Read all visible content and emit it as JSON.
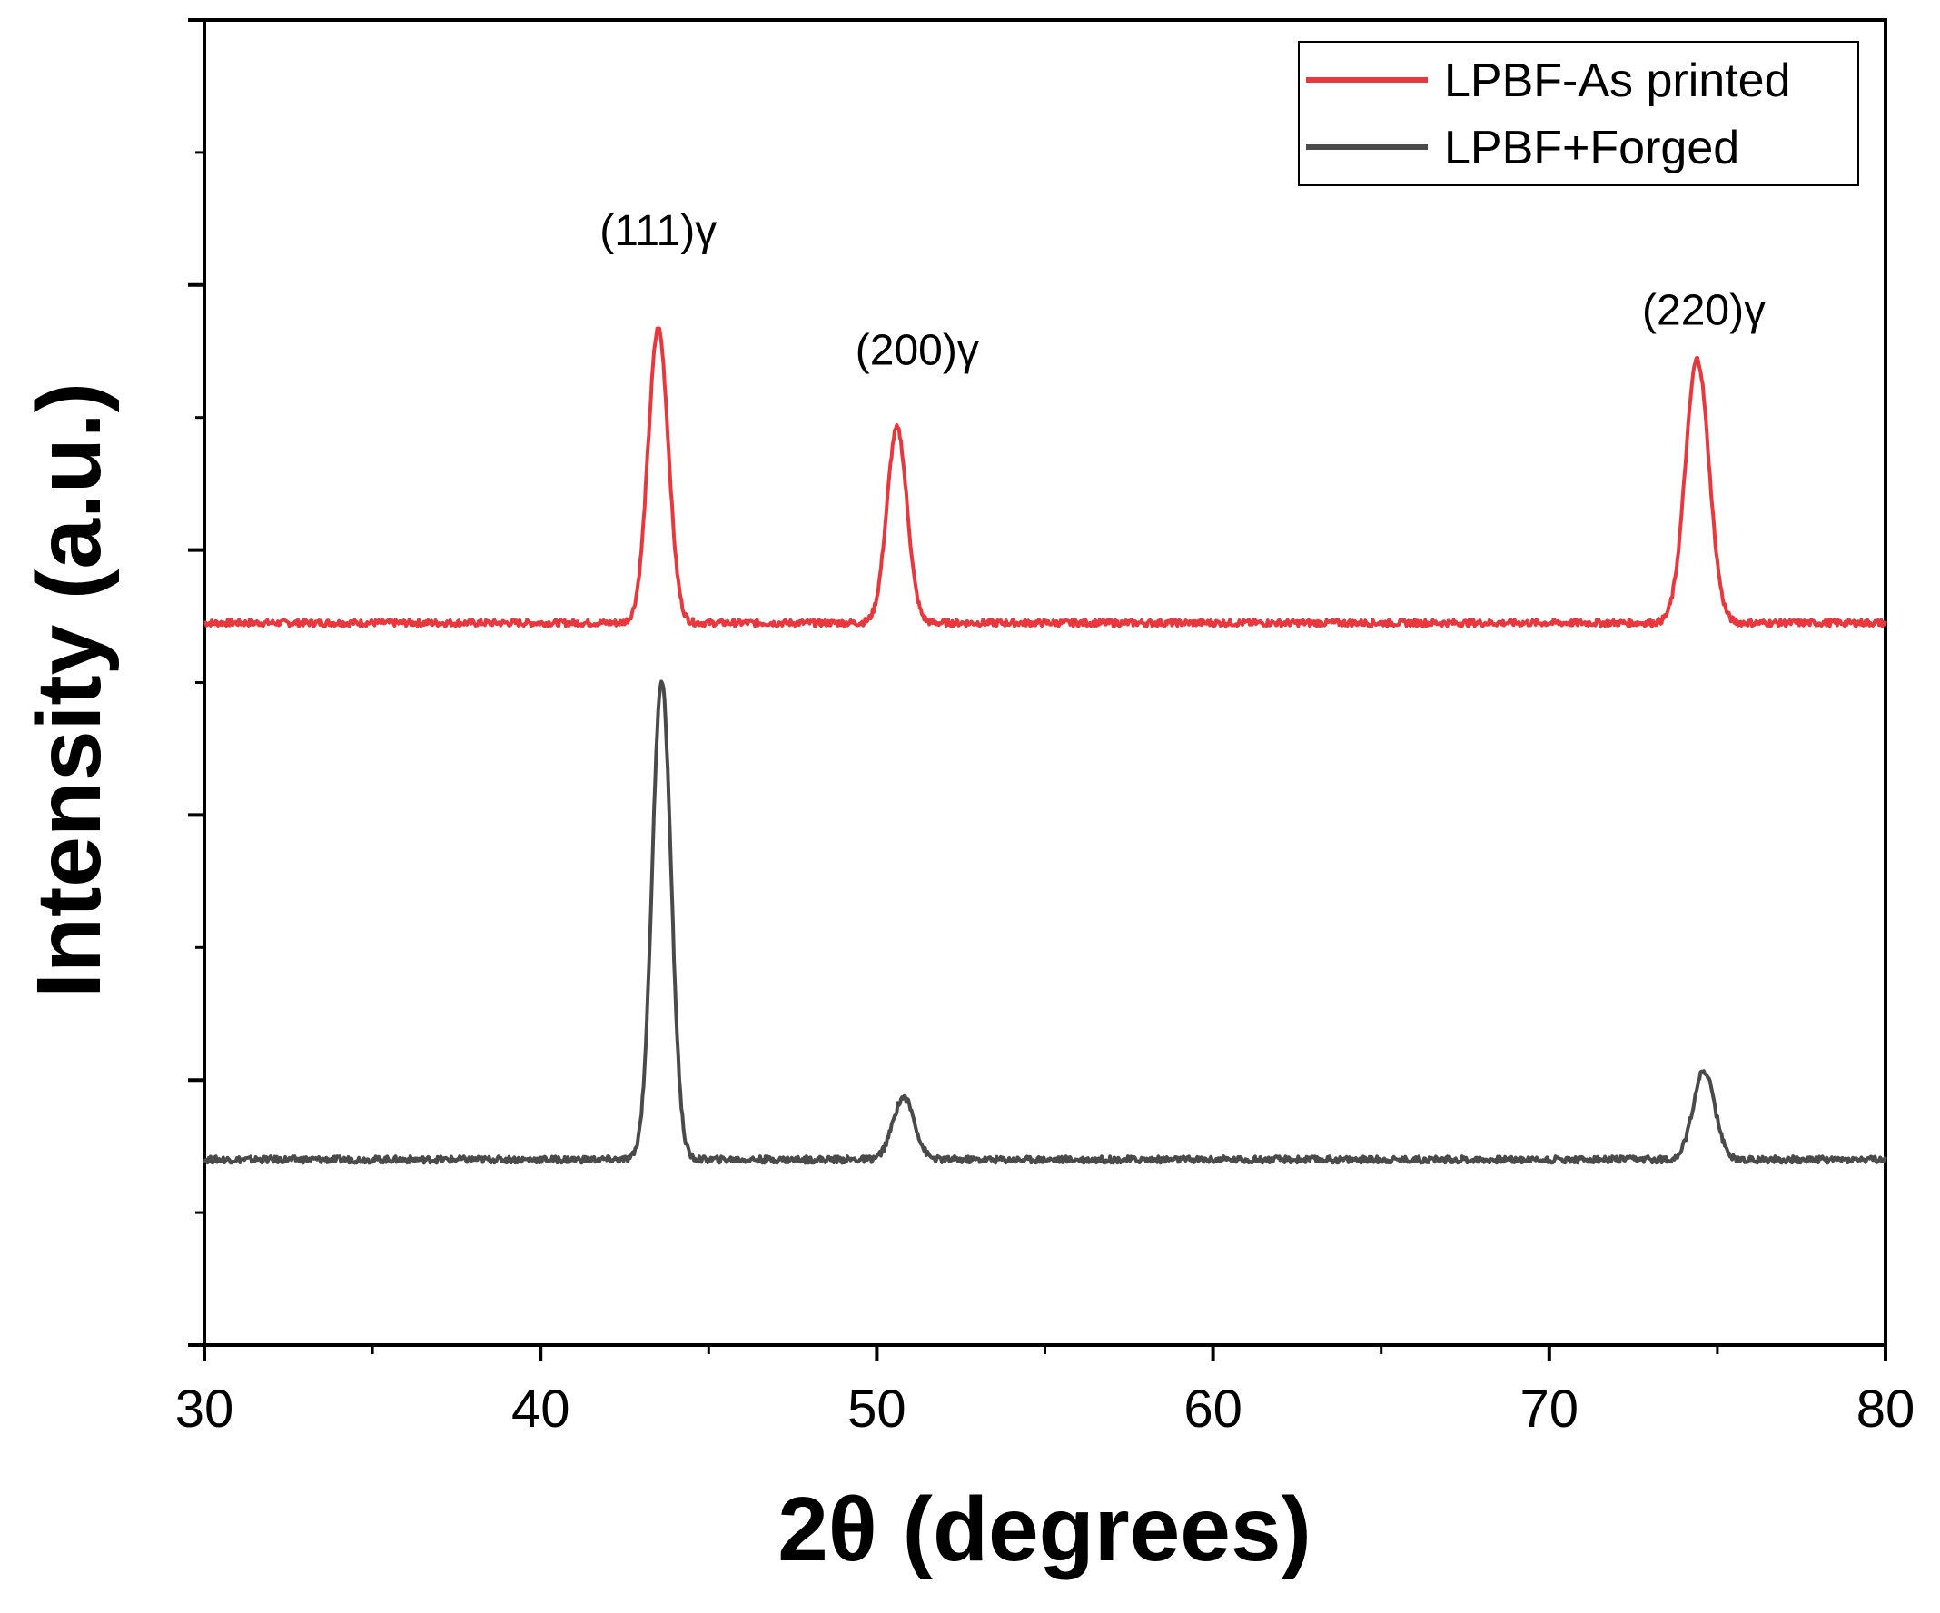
{
  "chart_data": {
    "type": "line",
    "xlabel": "2θ (degrees)",
    "ylabel": "Intensity (a.u.)",
    "xlim": [
      30,
      80
    ],
    "ylim": [
      0,
      10
    ],
    "x_ticks": [
      30,
      40,
      50,
      60,
      70,
      80
    ],
    "y_tick_labels": "none",
    "grid": false,
    "legend": "top-right",
    "series": [
      {
        "name": "LPBF-As printed",
        "color": "#e8383d",
        "baseline": 5.45,
        "peaks": [
          {
            "x": 43.5,
            "height": 2.22,
            "width": 0.3
          },
          {
            "x": 50.6,
            "height": 1.47,
            "width": 0.3
          },
          {
            "x": 74.4,
            "height": 1.99,
            "width": 0.35
          }
        ]
      },
      {
        "name": "LPBF+Forged",
        "color": "#4a4a4a",
        "baseline": 1.4,
        "peaks": [
          {
            "x": 43.6,
            "height": 3.62,
            "width": 0.28
          },
          {
            "x": 50.8,
            "height": 0.47,
            "width": 0.32
          },
          {
            "x": 74.6,
            "height": 0.67,
            "width": 0.32
          }
        ]
      }
    ],
    "annotations": [
      {
        "text": "(111)γ",
        "x": 43.5,
        "y": 8.3
      },
      {
        "text": "(200)γ",
        "x": 51.2,
        "y": 7.4
      },
      {
        "text": "(220)γ",
        "x": 74.6,
        "y": 7.7
      }
    ]
  }
}
